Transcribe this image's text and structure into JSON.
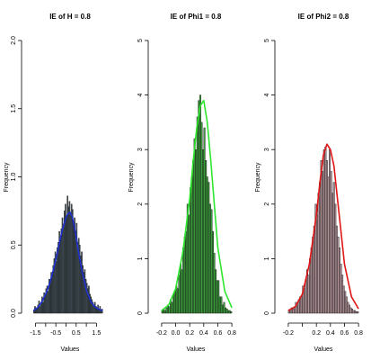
{
  "chart_data": [
    {
      "type": "bar",
      "title": "IE of H = 0.8",
      "xlabel": "Values",
      "ylabel": "Frequency",
      "xlim": [
        -1.7,
        2.1
      ],
      "ylim": [
        0,
        2.0
      ],
      "xticks": [
        -1.5,
        -1.0,
        -0.5,
        0.0,
        0.5,
        1.0,
        1.5
      ],
      "xtick_labels": [
        "-1.5",
        "",
        "-0.5",
        "",
        "0.5",
        "",
        "1.5"
      ],
      "yticks": [
        0.0,
        0.5,
        1.0,
        1.5,
        2.0
      ],
      "ytick_labels": [
        "0.0",
        "0.5",
        "1.0",
        "1.5",
        "2.0"
      ],
      "bar_color": "#4a5a63",
      "line_color": "#1f2fcf",
      "bin_start": -1.6,
      "bin_width": 0.05,
      "values": [
        0.02,
        0.05,
        0.04,
        0.03,
        0.06,
        0.09,
        0.05,
        0.08,
        0.12,
        0.08,
        0.15,
        0.14,
        0.18,
        0.2,
        0.16,
        0.25,
        0.22,
        0.3,
        0.28,
        0.35,
        0.4,
        0.45,
        0.38,
        0.48,
        0.52,
        0.6,
        0.55,
        0.62,
        0.7,
        0.64,
        0.75,
        0.8,
        0.7,
        0.86,
        0.78,
        0.82,
        0.72,
        0.8,
        0.76,
        0.65,
        0.7,
        0.6,
        0.66,
        0.52,
        0.55,
        0.5,
        0.42,
        0.45,
        0.35,
        0.3,
        0.32,
        0.25,
        0.22,
        0.18,
        0.2,
        0.14,
        0.12,
        0.1,
        0.08,
        0.06,
        0.08,
        0.05,
        0.04,
        0.06,
        0.03,
        0.05,
        0.02,
        0.03
      ],
      "density_curve": {
        "x": [
          -1.6,
          -1.4,
          -1.2,
          -1.0,
          -0.8,
          -0.6,
          -0.4,
          -0.2,
          0.0,
          0.1,
          0.2,
          0.3,
          0.4,
          0.5,
          0.6,
          0.8,
          1.0,
          1.2,
          1.4,
          1.6,
          1.8
        ],
        "y": [
          0.02,
          0.04,
          0.08,
          0.14,
          0.22,
          0.33,
          0.46,
          0.6,
          0.7,
          0.73,
          0.74,
          0.71,
          0.64,
          0.56,
          0.46,
          0.3,
          0.17,
          0.09,
          0.05,
          0.03,
          0.02
        ]
      }
    },
    {
      "type": "bar",
      "title": "IE of Phi1 = 0.8",
      "xlabel": "Values",
      "ylabel": "Frequency",
      "xlim": [
        -0.25,
        0.85
      ],
      "ylim": [
        0,
        5
      ],
      "xticks": [
        -0.2,
        0.0,
        0.2,
        0.4,
        0.6,
        0.8
      ],
      "xtick_labels": [
        "-0.2",
        "0.0",
        "0.2",
        "0.4",
        "0.6",
        "0.8"
      ],
      "yticks": [
        0,
        1,
        2,
        3,
        4,
        5
      ],
      "ytick_labels": [
        "0",
        "1",
        "2",
        "3",
        "4",
        "5"
      ],
      "bar_color": "#3c9b3c",
      "line_color": "#2ee62e",
      "bin_start": -0.2,
      "bin_width": 0.02,
      "values": [
        0.05,
        0.08,
        0.05,
        0.1,
        0.15,
        0.12,
        0.25,
        0.2,
        0.35,
        0.4,
        0.5,
        0.45,
        0.7,
        0.9,
        0.8,
        1.2,
        1.4,
        1.5,
        2.0,
        1.8,
        2.3,
        2.5,
        2.8,
        3.2,
        3.0,
        3.6,
        3.9,
        4.0,
        3.5,
        3.0,
        3.4,
        2.8,
        2.5,
        2.4,
        2.0,
        1.9,
        1.5,
        1.1,
        0.8,
        0.6,
        0.6,
        0.3,
        0.3,
        0.15,
        0.2,
        0.1,
        0.08,
        0.05,
        0.05,
        0.03
      ],
      "density_curve": {
        "x": [
          -0.2,
          -0.1,
          0.0,
          0.1,
          0.2,
          0.25,
          0.3,
          0.35,
          0.4,
          0.45,
          0.5,
          0.55,
          0.6,
          0.7,
          0.8
        ],
        "y": [
          0.05,
          0.15,
          0.45,
          1.1,
          2.1,
          2.8,
          3.4,
          3.8,
          3.9,
          3.5,
          2.8,
          2.0,
          1.2,
          0.4,
          0.1
        ]
      }
    },
    {
      "type": "bar",
      "title": "IE of Phi2 = 0.8",
      "xlabel": "Values",
      "ylabel": "Frequency",
      "xlim": [
        -0.25,
        0.85
      ],
      "ylim": [
        0,
        5
      ],
      "xticks": [
        -0.2,
        0.0,
        0.2,
        0.4,
        0.6,
        0.8
      ],
      "xtick_labels": [
        "-0.2",
        "",
        "0.2",
        "0.4",
        "0.6",
        "0.8"
      ],
      "yticks": [
        0,
        1,
        2,
        3,
        4,
        5
      ],
      "ytick_labels": [
        "0",
        "1",
        "2",
        "3",
        "4",
        "5"
      ],
      "bar_color": "#b09298",
      "line_color": "#e01515",
      "bin_start": -0.2,
      "bin_width": 0.02,
      "values": [
        0.05,
        0.05,
        0.1,
        0.08,
        0.12,
        0.2,
        0.15,
        0.25,
        0.3,
        0.3,
        0.5,
        0.45,
        0.6,
        0.8,
        0.7,
        1.0,
        1.2,
        1.4,
        1.6,
        2.0,
        1.8,
        2.2,
        2.4,
        2.8,
        2.6,
        3.0,
        3.05,
        2.8,
        2.5,
        3.0,
        2.6,
        2.2,
        2.4,
        2.0,
        1.6,
        1.4,
        1.2,
        0.9,
        0.7,
        0.5,
        0.4,
        0.3,
        0.2,
        0.15,
        0.1,
        0.08,
        0.05,
        0.05,
        0.03,
        0.03
      ],
      "density_curve": {
        "x": [
          -0.2,
          -0.1,
          0.0,
          0.1,
          0.2,
          0.25,
          0.3,
          0.35,
          0.4,
          0.45,
          0.5,
          0.55,
          0.6,
          0.7,
          0.8
        ],
        "y": [
          0.05,
          0.12,
          0.35,
          0.9,
          1.8,
          2.4,
          2.9,
          3.1,
          3.0,
          2.7,
          2.1,
          1.5,
          0.9,
          0.3,
          0.08
        ]
      }
    }
  ]
}
